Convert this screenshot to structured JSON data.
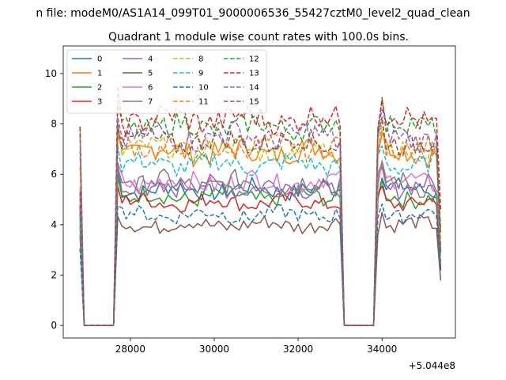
{
  "chart_data": {
    "type": "line",
    "suptitle": "n file: modeM0/AS1A14_099T01_9000006536_55427cztM0_level2_quad_clean",
    "title": "Quadrant 1 module wise count rates with 100.0s bins.",
    "xlabel": "",
    "ylabel": "",
    "x_offset_label": "+5.044e8",
    "xlim": [
      26400,
      35750
    ],
    "ylim": [
      -0.5,
      11.1
    ],
    "xticks": [
      28000,
      30000,
      32000,
      34000
    ],
    "xtick_labels": [
      "28000",
      "30000",
      "32000",
      "34000"
    ],
    "yticks": [
      0,
      2,
      4,
      6,
      8,
      10
    ],
    "ytick_labels": [
      "0",
      "2",
      "4",
      "6",
      "8",
      "10"
    ],
    "grid": false,
    "legend_position": "top-left",
    "time_axis": {
      "start": 26800,
      "step": 100,
      "first_segment": [
        26800,
        27600
      ],
      "second_segment": [
        27700,
        33000
      ],
      "third_segment": [
        33900,
        35400
      ],
      "gap_value": 0
    },
    "series": [
      {
        "name": "0",
        "color": "#1f77b4",
        "dash": "solid",
        "level": 5.4,
        "amplitude": 0.35
      },
      {
        "name": "1",
        "color": "#ff7f0e",
        "dash": "solid",
        "level": 6.9,
        "amplitude": 0.45
      },
      {
        "name": "2",
        "color": "#2ca02c",
        "dash": "solid",
        "level": 5.1,
        "amplitude": 0.35
      },
      {
        "name": "3",
        "color": "#d62728",
        "dash": "solid",
        "level": 4.9,
        "amplitude": 0.3
      },
      {
        "name": "4",
        "color": "#9467bd",
        "dash": "solid",
        "level": 5.5,
        "amplitude": 0.4
      },
      {
        "name": "5",
        "color": "#8c564b",
        "dash": "solid",
        "level": 4.0,
        "amplitude": 0.3
      },
      {
        "name": "6",
        "color": "#e377c2",
        "dash": "solid",
        "level": 5.7,
        "amplitude": 0.4
      },
      {
        "name": "7",
        "color": "#7f7f7f",
        "dash": "solid",
        "level": 5.6,
        "amplitude": 0.45
      },
      {
        "name": "8",
        "color": "#bcbd22",
        "dash": "dashed",
        "level": 7.0,
        "amplitude": 0.4
      },
      {
        "name": "9",
        "color": "#17becf",
        "dash": "dashed",
        "level": 6.4,
        "amplitude": 0.4
      },
      {
        "name": "10",
        "color": "#1f77b4",
        "dash": "dashed",
        "level": 4.4,
        "amplitude": 0.3
      },
      {
        "name": "11",
        "color": "#ff7f0e",
        "dash": "dashed",
        "level": 7.1,
        "amplitude": 0.45
      },
      {
        "name": "12",
        "color": "#2ca02c",
        "dash": "dashed",
        "level": 7.9,
        "amplitude": 0.45
      },
      {
        "name": "13",
        "color": "#d62728",
        "dash": "dashed",
        "level": 8.2,
        "amplitude": 0.5
      },
      {
        "name": "14",
        "color": "#9467bd",
        "dash": "dashed",
        "level": 7.5,
        "amplitude": 0.5
      },
      {
        "name": "15",
        "color": "#8c564b",
        "dash": "dashed",
        "level": 7.3,
        "amplitude": 0.45
      }
    ]
  }
}
